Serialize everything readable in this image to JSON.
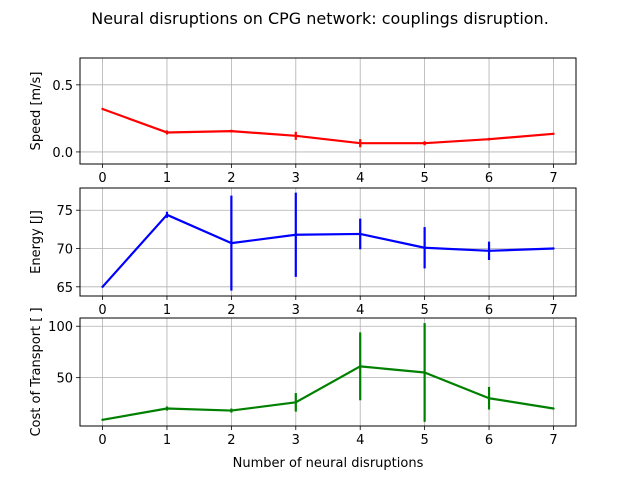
{
  "figure": {
    "title": "Neural disruptions on CPG network: couplings disruption."
  },
  "chart_data": [
    {
      "type": "line",
      "ylabel": "Speed [m/s]",
      "xlabel": "",
      "x": [
        0,
        1,
        2,
        3,
        4,
        5,
        6,
        7
      ],
      "xlim": [
        -0.35,
        7.35
      ],
      "ylim": [
        -0.09,
        0.7
      ],
      "yticks": [
        0.0,
        0.5
      ],
      "ytick_labels": [
        "0.0",
        "0.5"
      ],
      "grid": true,
      "color": "#ff0000",
      "series": [
        {
          "values": [
            0.32,
            0.145,
            0.155,
            0.12,
            0.065,
            0.065,
            0.095,
            0.135
          ],
          "errors": [
            0,
            0.015,
            0.01,
            0.03,
            0.03,
            0.015,
            0.01,
            0
          ]
        }
      ]
    },
    {
      "type": "line",
      "ylabel": "Energy [J]",
      "xlabel": "",
      "x": [
        0,
        1,
        2,
        3,
        4,
        5,
        6,
        7
      ],
      "xlim": [
        -0.35,
        7.35
      ],
      "ylim": [
        63.8,
        77.9
      ],
      "yticks": [
        65,
        70,
        75
      ],
      "ytick_labels": [
        "65",
        "70",
        "75"
      ],
      "grid": true,
      "color": "#0000ff",
      "series": [
        {
          "values": [
            65.0,
            74.4,
            70.7,
            71.8,
            71.9,
            70.1,
            69.7,
            70.0
          ],
          "errors": [
            0,
            0.4,
            6.2,
            5.5,
            2.0,
            2.7,
            1.2,
            0
          ]
        }
      ]
    },
    {
      "type": "line",
      "ylabel": "Cost of Transport [ ]",
      "xlabel": "Number of neural disruptions",
      "x": [
        0,
        1,
        2,
        3,
        4,
        5,
        6,
        7
      ],
      "xlim": [
        -0.35,
        7.35
      ],
      "ylim": [
        3,
        108
      ],
      "yticks": [
        50,
        100
      ],
      "ytick_labels": [
        "50",
        "100"
      ],
      "grid": true,
      "color": "#008000",
      "series": [
        {
          "values": [
            9,
            20,
            18,
            26,
            61,
            55,
            30,
            20
          ],
          "errors": [
            0,
            2,
            2,
            9,
            33,
            48,
            11,
            0
          ]
        }
      ]
    }
  ]
}
